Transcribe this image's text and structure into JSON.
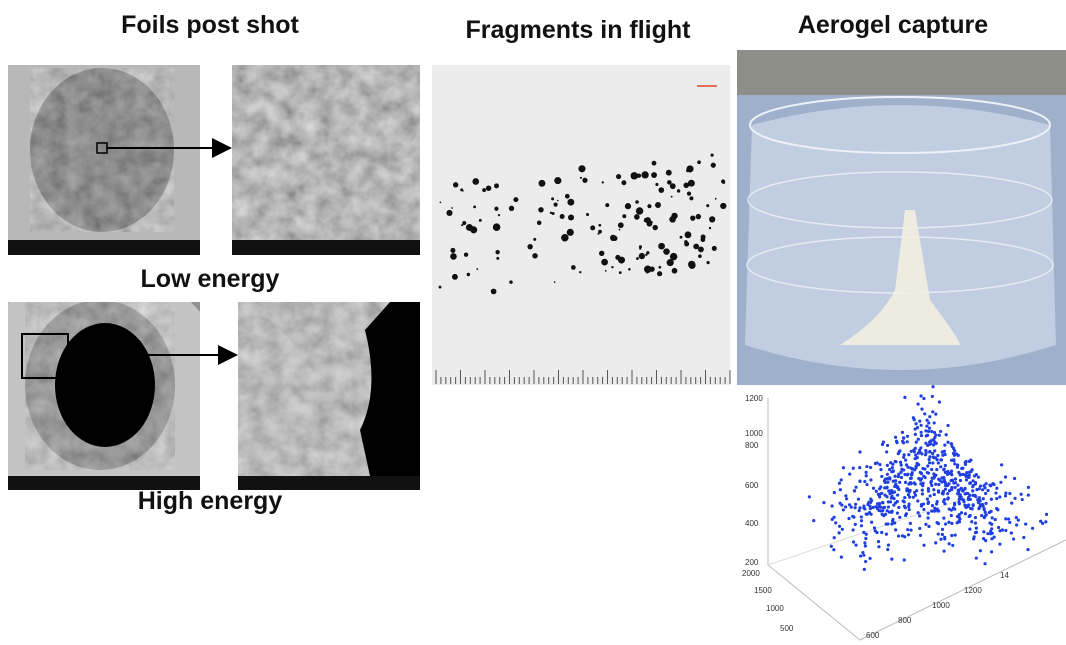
{
  "panels": {
    "foils": {
      "title": "Foils post shot",
      "low_label": "Low energy",
      "high_label": "High energy"
    },
    "fragments": {
      "title": "Fragments in flight"
    },
    "aerogel": {
      "title": "Aerogel capture",
      "plot": {
        "z_ticks": [
          200,
          400,
          600,
          800,
          1000,
          1200
        ],
        "y_ticks": [
          2000,
          1500,
          1000,
          500
        ],
        "x_ticks": [
          600,
          800,
          1000,
          1200,
          "14"
        ]
      }
    }
  }
}
